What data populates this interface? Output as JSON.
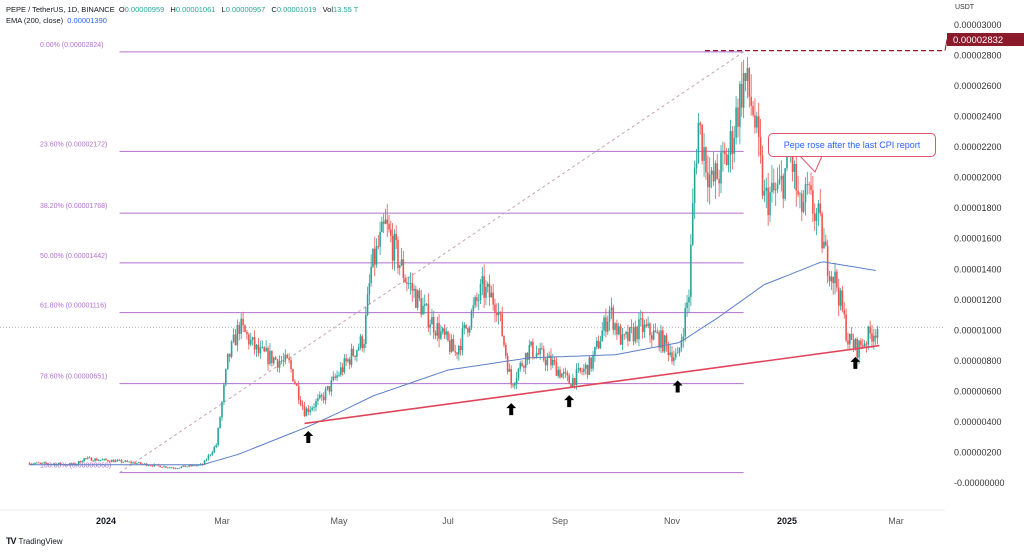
{
  "header": {
    "symbol": "PEPE / TetherUS, 1D, BINANCE",
    "open_label": "O",
    "open": "0.00000959",
    "high_label": "H",
    "high": "0.00001061",
    "low_label": "L",
    "low": "0.00000957",
    "close_label": "C",
    "close": "0.00001019",
    "vol_label": "Vol",
    "vol": "13.55 T",
    "ema_label": "EMA (200, close)",
    "ema_value": "0.00001390"
  },
  "annotation": "Pepe rose after the last CPI report",
  "branding": "TradingView",
  "colors": {
    "up": "#26a69a",
    "down": "#ef5350",
    "ema": "#5b7fc7",
    "fib": "#b36fd1",
    "trendline": "#e0455a",
    "price_tag": "#8b1a2b"
  },
  "chart_data": {
    "type": "candlestick",
    "currency_label": "USDT",
    "ylim": [
      0,
      3e-05
    ],
    "y_ticks": [
      "0.00003000",
      "0.00002800",
      "0.00002600",
      "0.00002400",
      "0.00002200",
      "0.00002000",
      "0.00001800",
      "0.00001600",
      "0.00001400",
      "0.00001200",
      "0.00001000",
      "0.00000800",
      "0.00000600",
      "0.00000400",
      "0.00000200",
      "-0.00000000"
    ],
    "y_tick_values": [
      3e-05,
      2.8e-05,
      2.6e-05,
      2.4e-05,
      2.2e-05,
      2e-05,
      1.8e-05,
      1.6e-05,
      1.4e-05,
      1.2e-05,
      1e-05,
      8e-06,
      6e-06,
      4e-06,
      2e-06,
      0
    ],
    "x_ticks": [
      {
        "label": "2024",
        "date": "2024-01-01",
        "bold": true
      },
      {
        "label": "Mar",
        "date": "2024-03-01"
      },
      {
        "label": "May",
        "date": "2024-05-01"
      },
      {
        "label": "Jul",
        "date": "2024-07-01"
      },
      {
        "label": "Sep",
        "date": "2024-09-01"
      },
      {
        "label": "Nov",
        "date": "2024-11-01"
      },
      {
        "label": "2025",
        "date": "2025-01-01",
        "bold": true
      },
      {
        "label": "Mar",
        "date": "2025-03-01"
      }
    ],
    "price_path": [
      [
        "2023-11-20",
        1.3e-06
      ],
      [
        "2023-12-15",
        1.2e-06
      ],
      [
        "2023-12-20",
        1.6e-06
      ],
      [
        "2024-01-10",
        1.4e-06
      ],
      [
        "2024-02-05",
        1e-06
      ],
      [
        "2024-02-20",
        1.2e-06
      ],
      [
        "2024-02-27",
        2.5e-06
      ],
      [
        "2024-03-04",
        8e-06
      ],
      [
        "2024-03-10",
        1.03e-05
      ],
      [
        "2024-03-20",
        8.5e-06
      ],
      [
        "2024-04-05",
        7.8e-06
      ],
      [
        "2024-04-13",
        4.7e-06
      ],
      [
        "2024-04-22",
        5.5e-06
      ],
      [
        "2024-05-01",
        7.2e-06
      ],
      [
        "2024-05-15",
        9.5e-06
      ],
      [
        "2024-05-19",
        1.4e-05
      ],
      [
        "2024-05-27",
        1.68e-05
      ],
      [
        "2024-06-07",
        1.35e-05
      ],
      [
        "2024-06-18",
        1.12e-05
      ],
      [
        "2024-07-05",
        8.5e-06
      ],
      [
        "2024-07-20",
        1.27e-05
      ],
      [
        "2024-07-28",
        1.18e-05
      ],
      [
        "2024-08-05",
        6.5e-06
      ],
      [
        "2024-08-15",
        8.8e-06
      ],
      [
        "2024-08-28",
        7.8e-06
      ],
      [
        "2024-09-06",
        6.6e-06
      ],
      [
        "2024-09-18",
        7.8e-06
      ],
      [
        "2024-09-28",
        1.13e-05
      ],
      [
        "2024-10-05",
        9.2e-06
      ],
      [
        "2024-10-15",
        1.02e-05
      ],
      [
        "2024-10-25",
        9.5e-06
      ],
      [
        "2024-11-04",
        8.1e-06
      ],
      [
        "2024-11-10",
        1.25e-05
      ],
      [
        "2024-11-13",
        2.05e-05
      ],
      [
        "2024-11-15",
        2.35e-05
      ],
      [
        "2024-11-22",
        1.95e-05
      ],
      [
        "2024-12-01",
        2.15e-05
      ],
      [
        "2024-12-09",
        2.65e-05
      ],
      [
        "2024-12-14",
        2.45e-05
      ],
      [
        "2024-12-20",
        1.85e-05
      ],
      [
        "2024-12-28",
        1.92e-05
      ],
      [
        "2025-01-03",
        2.15e-05
      ],
      [
        "2025-01-08",
        1.78e-05
      ],
      [
        "2025-01-12",
        1.88e-05
      ],
      [
        "2025-01-18",
        1.72e-05
      ],
      [
        "2025-01-22",
        1.48e-05
      ],
      [
        "2025-01-28",
        1.3e-05
      ],
      [
        "2025-02-03",
        9.4e-06
      ],
      [
        "2025-02-08",
        8.8e-06
      ],
      [
        "2025-02-14",
        9.6e-06
      ],
      [
        "2025-02-19",
        1.02e-05
      ]
    ],
    "ema200": [
      [
        "2023-11-20",
        1.2e-06
      ],
      [
        "2024-02-20",
        1.2e-06
      ],
      [
        "2024-03-10",
        1.9e-06
      ],
      [
        "2024-04-15",
        3.7e-06
      ],
      [
        "2024-05-20",
        5.7e-06
      ],
      [
        "2024-07-01",
        7.4e-06
      ],
      [
        "2024-08-15",
        8.2e-06
      ],
      [
        "2024-10-01",
        8.4e-06
      ],
      [
        "2024-11-05",
        9.2e-06
      ],
      [
        "2024-11-25",
        1.08e-05
      ],
      [
        "2024-12-20",
        1.3e-05
      ],
      [
        "2025-01-20",
        1.45e-05
      ],
      [
        "2025-02-19",
        1.39e-05
      ]
    ],
    "fibonacci": [
      {
        "label": "0.00% (0.00002824)",
        "value": 2.824e-05
      },
      {
        "label": "23.60% (0.00002172)",
        "value": 2.172e-05
      },
      {
        "label": "38.20% (0.00001768)",
        "value": 1.768e-05
      },
      {
        "label": "50.00% (0.00001442)",
        "value": 1.442e-05
      },
      {
        "label": "61.80% (0.00001116)",
        "value": 1.116e-05
      },
      {
        "label": "78.60% (0.00000651)",
        "value": 6.51e-06
      },
      {
        "label": "100.00% (0.00000068)",
        "value": 6.8e-07
      }
    ],
    "fib_range": {
      "from": "2024-01-08",
      "to": "2024-12-09"
    },
    "trendline": {
      "from": [
        "2024-04-13",
        3.9e-06
      ],
      "to": [
        "2025-02-20",
        9e-06
      ]
    },
    "arrows": [
      "2024-04-15",
      "2024-08-05",
      "2024-09-06",
      "2024-11-04",
      "2025-02-07"
    ],
    "high_price_tag": "0.00002832",
    "high_price": 2.832e-05,
    "last_price": 1.019e-05
  }
}
